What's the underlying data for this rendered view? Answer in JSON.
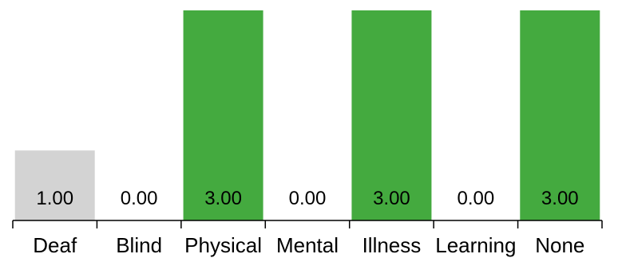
{
  "chart_data": {
    "type": "bar",
    "categories": [
      "Deaf",
      "Blind",
      "Physical",
      "Mental",
      "Illness",
      "Learning",
      "None"
    ],
    "values": [
      1.0,
      0.0,
      3.0,
      0.0,
      3.0,
      0.0,
      3.0
    ],
    "value_labels": [
      "1.00",
      "0.00",
      "3.00",
      "0.00",
      "3.00",
      "0.00",
      "3.00"
    ],
    "ylim": [
      0,
      3
    ],
    "grid": false,
    "legend": "none",
    "colors": {
      "max": "#44aa3f",
      "other": "#d3d3d3",
      "axis": "#000000",
      "text": "#000000"
    }
  }
}
